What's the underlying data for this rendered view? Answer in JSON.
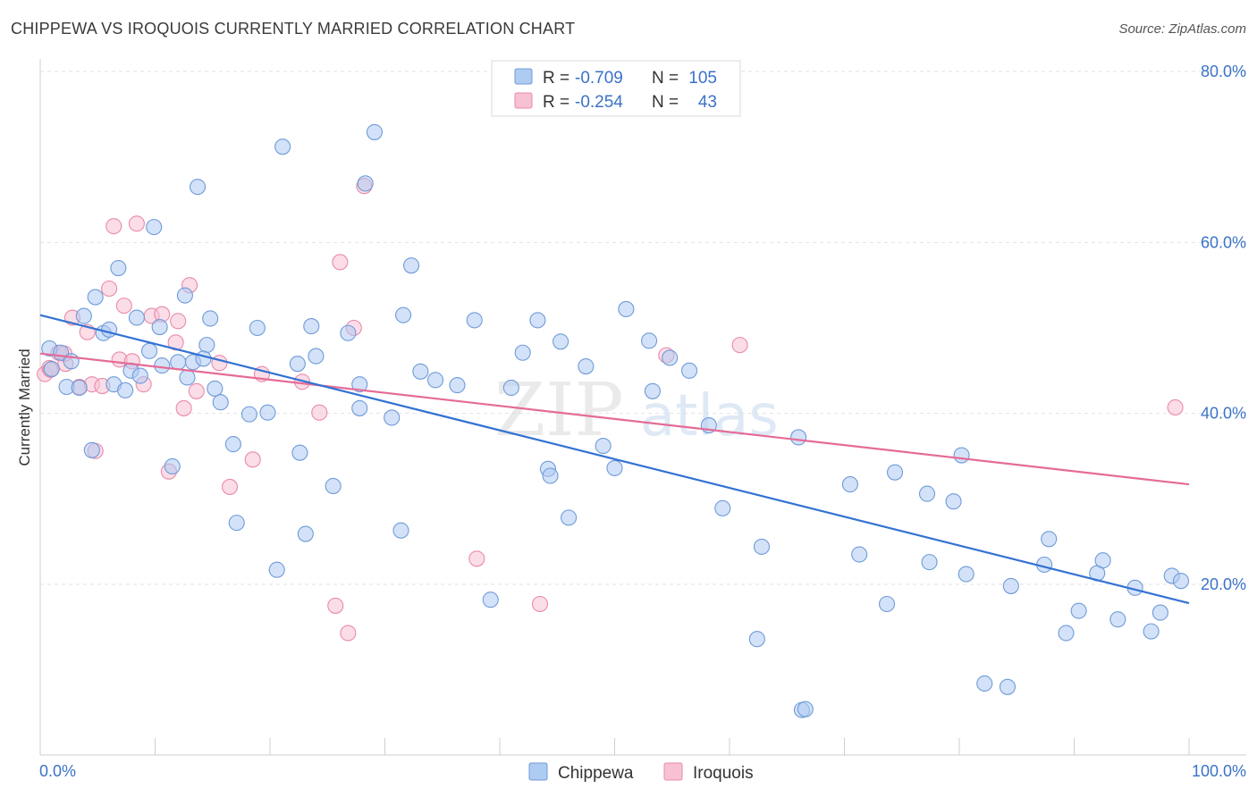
{
  "header": {
    "title": "CHIPPEWA VS IROQUOIS CURRENTLY MARRIED CORRELATION CHART",
    "source": "Source: ZipAtlas.com"
  },
  "watermark": {
    "zip": "ZIP",
    "atlas": "atlas"
  },
  "colors": {
    "chippewa_fill": "#aecbf2",
    "chippewa_stroke": "#6f9bd8",
    "chippewa_line": "#3272d3",
    "iroquois_fill": "#f8c1d3",
    "iroquois_stroke": "#e98aaa",
    "iroquois_line": "#e56b97",
    "value_text": "#3a72c8",
    "grid": "#e2e2e2"
  },
  "legend": {
    "rows": [
      {
        "r_label": "R =",
        "r_value": "-0.709",
        "n_label": "N =",
        "n_value": "105"
      },
      {
        "r_label": "R =",
        "r_value": "-0.254",
        "n_label": "N =",
        "n_value": "43"
      }
    ]
  },
  "bottom_legend": [
    {
      "label": "Chippewa"
    },
    {
      "label": "Iroquois"
    }
  ],
  "chart_data": {
    "type": "scatter",
    "title": "CHIPPEWA VS IROQUOIS CURRENTLY MARRIED CORRELATION CHART",
    "xlabel": "",
    "ylabel": "Currently Married",
    "xlim": [
      0,
      100
    ],
    "ylim": [
      2,
      82
    ],
    "x_tick_labels": [
      "0.0%",
      "100.0%"
    ],
    "y_ticks": [
      20,
      40,
      60,
      80
    ],
    "y_tick_labels": [
      "20.0%",
      "40.0%",
      "60.0%",
      "80.0%"
    ],
    "grid": true,
    "legend_position": "top-center",
    "series": [
      {
        "name": "Chippewa",
        "R": -0.709,
        "N": 105,
        "trend": {
          "x": [
            0,
            100
          ],
          "y": [
            51.5,
            17.8
          ]
        },
        "points": [
          [
            0.8,
            47.6
          ],
          [
            1,
            45.2
          ],
          [
            1.8,
            47.1
          ],
          [
            2.3,
            43.1
          ],
          [
            2.7,
            46.1
          ],
          [
            3.4,
            43.0
          ],
          [
            3.8,
            51.4
          ],
          [
            4.5,
            35.7
          ],
          [
            4.8,
            53.6
          ],
          [
            5.5,
            49.4
          ],
          [
            6.4,
            43.4
          ],
          [
            6.8,
            57.0
          ],
          [
            7.4,
            42.7
          ],
          [
            7.9,
            45.0
          ],
          [
            8.4,
            51.2
          ],
          [
            8.7,
            44.4
          ],
          [
            9.5,
            47.3
          ],
          [
            9.9,
            61.8
          ],
          [
            10.4,
            50.1
          ],
          [
            10.6,
            45.6
          ],
          [
            11.5,
            33.8
          ],
          [
            12,
            46.0
          ],
          [
            12.6,
            53.8
          ],
          [
            12.8,
            44.2
          ],
          [
            13.3,
            46.0
          ],
          [
            13.7,
            66.5
          ],
          [
            14.5,
            48.0
          ],
          [
            14.8,
            51.1
          ],
          [
            15.2,
            42.9
          ],
          [
            15.7,
            41.3
          ],
          [
            16.8,
            36.4
          ],
          [
            17.1,
            27.2
          ],
          [
            18.2,
            39.9
          ],
          [
            18.9,
            50.0
          ],
          [
            19.8,
            40.1
          ],
          [
            20.6,
            21.7
          ],
          [
            21.1,
            71.2
          ],
          [
            22.4,
            45.8
          ],
          [
            22.6,
            35.4
          ],
          [
            23.1,
            25.9
          ],
          [
            23.6,
            50.2
          ],
          [
            24,
            46.7
          ],
          [
            25.5,
            31.5
          ],
          [
            26.8,
            49.4
          ],
          [
            27.8,
            43.4
          ],
          [
            27.8,
            40.6
          ],
          [
            28.3,
            66.9
          ],
          [
            29.1,
            72.9
          ],
          [
            30.6,
            39.5
          ],
          [
            31.4,
            26.3
          ],
          [
            31.6,
            51.5
          ],
          [
            32.3,
            57.3
          ],
          [
            33.1,
            44.9
          ],
          [
            34.4,
            43.9
          ],
          [
            36.3,
            43.3
          ],
          [
            37.8,
            50.9
          ],
          [
            39.2,
            18.2
          ],
          [
            41,
            43.0
          ],
          [
            42,
            47.1
          ],
          [
            43.3,
            50.9
          ],
          [
            44.2,
            33.5
          ],
          [
            44.4,
            32.7
          ],
          [
            45.3,
            48.4
          ],
          [
            46,
            27.8
          ],
          [
            47.5,
            45.5
          ],
          [
            49,
            36.2
          ],
          [
            50,
            33.6
          ],
          [
            51,
            52.2
          ],
          [
            53,
            48.5
          ],
          [
            53.3,
            42.6
          ],
          [
            54.8,
            46.5
          ],
          [
            56.5,
            45.0
          ],
          [
            58.2,
            38.6
          ],
          [
            59.4,
            28.9
          ],
          [
            62.4,
            13.6
          ],
          [
            62.8,
            24.4
          ],
          [
            66,
            37.2
          ],
          [
            66.3,
            5.3
          ],
          [
            66.6,
            5.4
          ],
          [
            70.5,
            31.7
          ],
          [
            71.3,
            23.5
          ],
          [
            73.7,
            17.7
          ],
          [
            74.4,
            33.1
          ],
          [
            77.2,
            30.6
          ],
          [
            77.4,
            22.6
          ],
          [
            79.5,
            29.7
          ],
          [
            80.2,
            35.1
          ],
          [
            80.6,
            21.2
          ],
          [
            82.2,
            8.4
          ],
          [
            84.2,
            8.0
          ],
          [
            84.5,
            19.8
          ],
          [
            87.4,
            22.3
          ],
          [
            87.8,
            25.3
          ],
          [
            89.3,
            14.3
          ],
          [
            90.4,
            16.9
          ],
          [
            92,
            21.3
          ],
          [
            92.5,
            22.8
          ],
          [
            93.8,
            15.9
          ],
          [
            95.3,
            19.6
          ],
          [
            96.7,
            14.5
          ],
          [
            97.5,
            16.7
          ],
          [
            98.5,
            21.0
          ],
          [
            99.3,
            20.4
          ],
          [
            6,
            49.8
          ],
          [
            14.2,
            46.4
          ]
        ]
      },
      {
        "name": "Iroquois",
        "R": -0.254,
        "N": 43,
        "trend": {
          "x": [
            0,
            100
          ],
          "y": [
            47.0,
            31.7
          ]
        },
        "points": [
          [
            0.4,
            44.6
          ],
          [
            0.8,
            45.3
          ],
          [
            1.6,
            47.1
          ],
          [
            2.2,
            45.8
          ],
          [
            2.8,
            51.2
          ],
          [
            3.4,
            43.1
          ],
          [
            4.1,
            49.5
          ],
          [
            4.5,
            43.4
          ],
          [
            4.8,
            35.6
          ],
          [
            5.4,
            43.2
          ],
          [
            6,
            54.6
          ],
          [
            6.4,
            61.9
          ],
          [
            6.9,
            46.3
          ],
          [
            7.3,
            52.6
          ],
          [
            8,
            46.1
          ],
          [
            8.4,
            62.2
          ],
          [
            9,
            43.4
          ],
          [
            9.7,
            51.4
          ],
          [
            10.6,
            51.6
          ],
          [
            11.2,
            33.2
          ],
          [
            11.8,
            48.3
          ],
          [
            12,
            50.8
          ],
          [
            12.5,
            40.6
          ],
          [
            13,
            55.0
          ],
          [
            13.6,
            42.6
          ],
          [
            15.6,
            45.9
          ],
          [
            16.5,
            31.4
          ],
          [
            18.5,
            34.6
          ],
          [
            19.3,
            44.6
          ],
          [
            22.8,
            43.7
          ],
          [
            24.3,
            40.1
          ],
          [
            25.7,
            17.5
          ],
          [
            26.1,
            57.7
          ],
          [
            26.8,
            14.3
          ],
          [
            27.3,
            50.0
          ],
          [
            28.2,
            66.6
          ],
          [
            38,
            23.0
          ],
          [
            43.5,
            17.7
          ],
          [
            54.5,
            46.8
          ],
          [
            60.9,
            48.0
          ],
          [
            98.8,
            40.7
          ],
          [
            0.9,
            45.1
          ],
          [
            2.1,
            47.0
          ]
        ]
      }
    ]
  }
}
